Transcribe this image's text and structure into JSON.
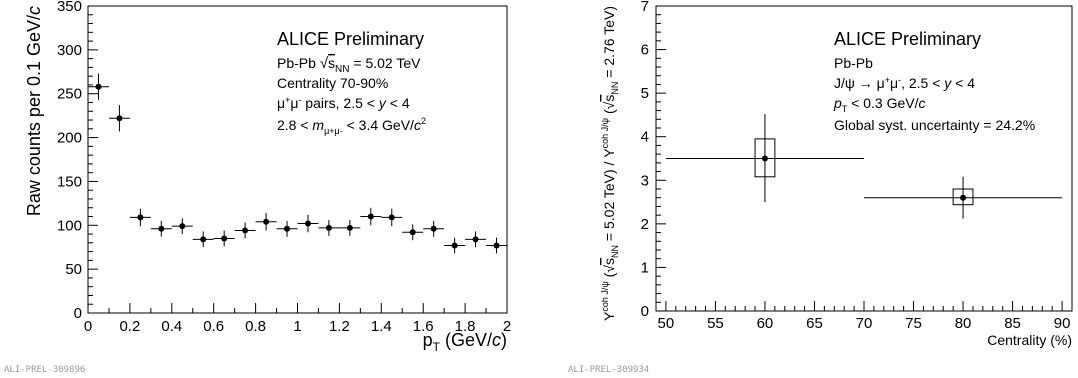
{
  "chart_data": [
    {
      "type": "scatter",
      "xlabel": "p_T (GeV/c)",
      "ylabel": "Raw counts per 0.1 GeV/c",
      "xlim": [
        0,
        2
      ],
      "ylim": [
        0,
        350
      ],
      "x_ticks": [
        "0",
        "0.2",
        "0.4",
        "0.6",
        "0.8",
        "1",
        "1.2",
        "1.4",
        "1.6",
        "1.8",
        "2"
      ],
      "y_ticks": [
        "0",
        "50",
        "100",
        "150",
        "200",
        "250",
        "300",
        "350"
      ],
      "annotations": [
        "ALICE Preliminary",
        "Pb-Pb √s_NN = 5.02 TeV",
        "Centrality 70-90%",
        "μ+μ- pairs, 2.5 < y < 4",
        "2.8 < m_μ+μ- < 3.4 GeV/c²"
      ],
      "figure_tag": "ALI-PREL-309896",
      "x": [
        0.05,
        0.15,
        0.25,
        0.35,
        0.45,
        0.55,
        0.65,
        0.75,
        0.85,
        0.95,
        1.05,
        1.15,
        1.25,
        1.35,
        1.45,
        1.55,
        1.65,
        1.75,
        1.85,
        1.95
      ],
      "y": [
        258,
        222,
        109,
        96,
        99,
        84,
        85,
        94,
        104,
        96,
        102,
        97,
        97,
        110,
        109,
        92,
        96,
        77,
        84,
        77
      ],
      "yerr": [
        15,
        15,
        10,
        9,
        9,
        9,
        9,
        9,
        10,
        9,
        10,
        9,
        9,
        10,
        10,
        9,
        9,
        9,
        9,
        9
      ],
      "xerr": 0.05
    },
    {
      "type": "scatter",
      "xlabel": "Centrality (%)",
      "ylabel": "Y^{coh J/ψ} (√s_NN = 5.02 TeV) / Y^{coh J/ψ} (√s_NN = 2.76 TeV)",
      "xlim": [
        49,
        91
      ],
      "ylim": [
        0,
        7
      ],
      "x_ticks": [
        "50",
        "55",
        "60",
        "65",
        "70",
        "75",
        "80",
        "85",
        "90"
      ],
      "y_ticks": [
        "0",
        "1",
        "2",
        "3",
        "4",
        "5",
        "6",
        "7"
      ],
      "annotations": [
        "ALICE Preliminary",
        "Pb-Pb",
        "J/ψ → μ+μ-, 2.5 < y < 4",
        "p_T < 0.3 GeV/c",
        "Global syst. uncertainty = 24.2%"
      ],
      "figure_tag": "ALI-PREL-309934",
      "points": [
        {
          "x": 60,
          "y": 3.5,
          "xmin": 50,
          "xmax": 70,
          "stat_low": 2.5,
          "stat_high": 4.52,
          "syst_low": 3.08,
          "syst_high": 3.95,
          "box_halfwidth": 1
        },
        {
          "x": 80,
          "y": 2.6,
          "xmin": 70,
          "xmax": 90,
          "stat_low": 2.12,
          "stat_high": 3.08,
          "syst_low": 2.44,
          "syst_high": 2.8,
          "box_halfwidth": 1
        }
      ]
    }
  ]
}
